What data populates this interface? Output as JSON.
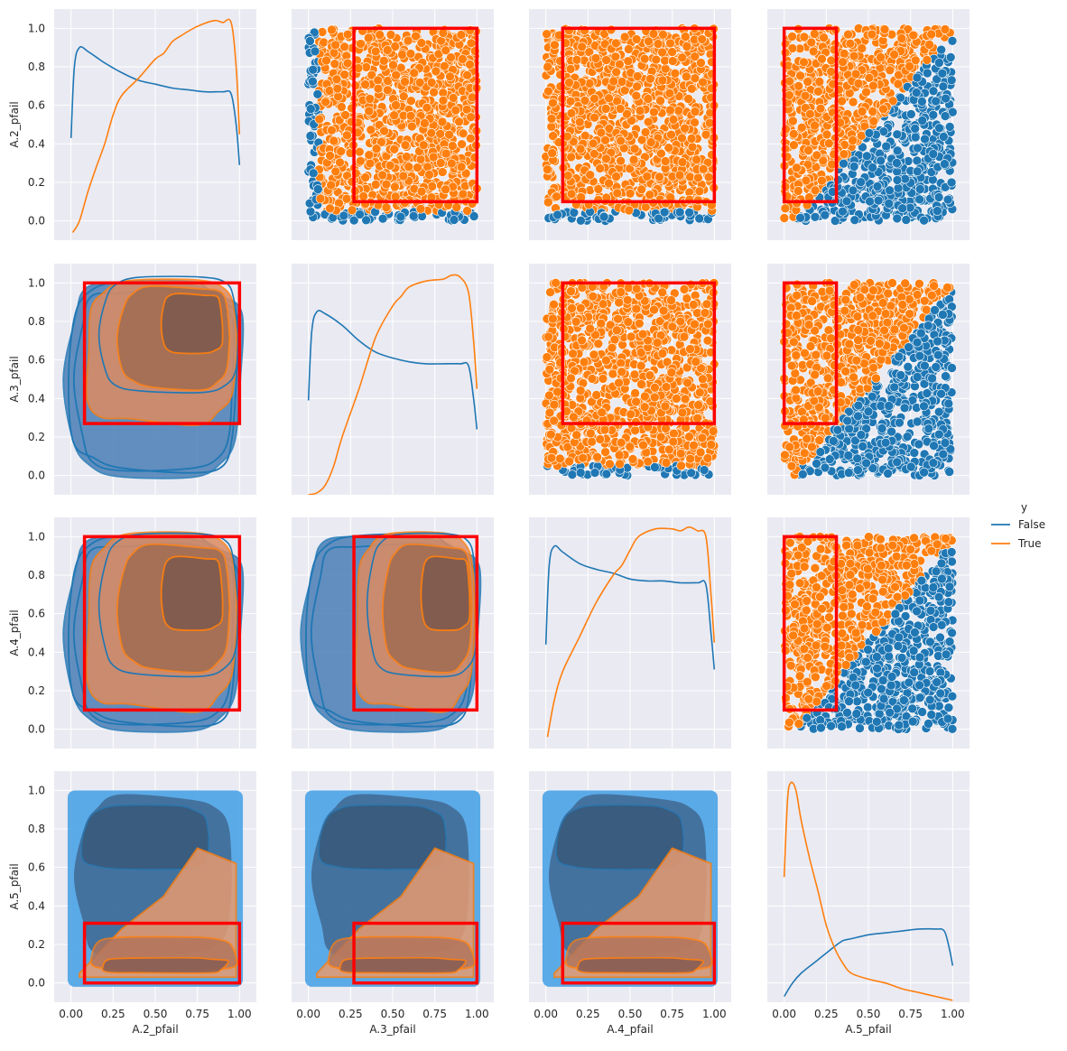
{
  "chart_data": {
    "type": "pairplot",
    "variables": [
      "A.2_pfail",
      "A.3_pfail",
      "A.4_pfail",
      "A.5_pfail"
    ],
    "axis_range": [
      -0.1,
      1.1
    ],
    "x_ticks": [
      "0.00",
      "0.25",
      "0.50",
      "0.75",
      "1.00"
    ],
    "y_ticks": [
      "0.0",
      "0.2",
      "0.4",
      "0.6",
      "0.8",
      "1.0"
    ],
    "hue": "y",
    "legend": {
      "title": "y",
      "placement": "right",
      "entries": [
        {
          "label": "False",
          "color": "#1f77b4"
        },
        {
          "label": "True",
          "color": "#ff7f0e"
        }
      ]
    },
    "colors": {
      "False": "#1f77b4",
      "True": "#ff7f0e",
      "box": "#ff0000",
      "background": "#eaeaf2",
      "grid": "#ffffff",
      "kde_fill_false": "#4aa3e6"
    },
    "diagonal_kde": [
      {
        "var": "A.2_pfail",
        "false": [
          [
            0.0,
            0.43
          ],
          [
            0.02,
            0.8
          ],
          [
            0.05,
            0.9
          ],
          [
            0.1,
            0.88
          ],
          [
            0.15,
            0.85
          ],
          [
            0.2,
            0.82
          ],
          [
            0.3,
            0.77
          ],
          [
            0.4,
            0.73
          ],
          [
            0.5,
            0.71
          ],
          [
            0.6,
            0.69
          ],
          [
            0.7,
            0.68
          ],
          [
            0.8,
            0.67
          ],
          [
            0.9,
            0.67
          ],
          [
            0.95,
            0.66
          ],
          [
            0.98,
            0.5
          ],
          [
            1.0,
            0.29
          ]
        ],
        "true": [
          [
            0.01,
            -0.06
          ],
          [
            0.05,
            0.0
          ],
          [
            0.1,
            0.15
          ],
          [
            0.15,
            0.28
          ],
          [
            0.2,
            0.4
          ],
          [
            0.25,
            0.55
          ],
          [
            0.3,
            0.65
          ],
          [
            0.4,
            0.74
          ],
          [
            0.5,
            0.84
          ],
          [
            0.55,
            0.87
          ],
          [
            0.6,
            0.93
          ],
          [
            0.65,
            0.96
          ],
          [
            0.75,
            1.01
          ],
          [
            0.85,
            1.04
          ],
          [
            0.9,
            1.03
          ],
          [
            0.95,
            1.03
          ],
          [
            0.98,
            0.8
          ],
          [
            1.0,
            0.45
          ]
        ]
      },
      {
        "var": "A.3_pfail",
        "false": [
          [
            0.0,
            0.39
          ],
          [
            0.02,
            0.75
          ],
          [
            0.05,
            0.85
          ],
          [
            0.1,
            0.84
          ],
          [
            0.2,
            0.78
          ],
          [
            0.3,
            0.7
          ],
          [
            0.4,
            0.64
          ],
          [
            0.5,
            0.61
          ],
          [
            0.6,
            0.59
          ],
          [
            0.7,
            0.58
          ],
          [
            0.8,
            0.58
          ],
          [
            0.9,
            0.58
          ],
          [
            0.95,
            0.57
          ],
          [
            0.98,
            0.4
          ],
          [
            1.0,
            0.24
          ]
        ],
        "true": [
          [
            0.0,
            -0.1
          ],
          [
            0.05,
            -0.09
          ],
          [
            0.1,
            -0.05
          ],
          [
            0.15,
            0.05
          ],
          [
            0.2,
            0.2
          ],
          [
            0.3,
            0.45
          ],
          [
            0.4,
            0.72
          ],
          [
            0.5,
            0.88
          ],
          [
            0.55,
            0.93
          ],
          [
            0.6,
            0.98
          ],
          [
            0.7,
            1.01
          ],
          [
            0.8,
            1.02
          ],
          [
            0.85,
            1.04
          ],
          [
            0.9,
            1.03
          ],
          [
            0.95,
            0.95
          ],
          [
            0.98,
            0.7
          ],
          [
            1.0,
            0.45
          ]
        ]
      },
      {
        "var": "A.4_pfail",
        "false": [
          [
            0.0,
            0.44
          ],
          [
            0.02,
            0.85
          ],
          [
            0.05,
            0.95
          ],
          [
            0.1,
            0.92
          ],
          [
            0.2,
            0.86
          ],
          [
            0.3,
            0.83
          ],
          [
            0.4,
            0.81
          ],
          [
            0.5,
            0.78
          ],
          [
            0.6,
            0.77
          ],
          [
            0.7,
            0.77
          ],
          [
            0.8,
            0.76
          ],
          [
            0.9,
            0.76
          ],
          [
            0.95,
            0.75
          ],
          [
            0.98,
            0.5
          ],
          [
            1.0,
            0.31
          ]
        ],
        "true": [
          [
            0.01,
            -0.04
          ],
          [
            0.05,
            0.15
          ],
          [
            0.1,
            0.3
          ],
          [
            0.2,
            0.48
          ],
          [
            0.3,
            0.66
          ],
          [
            0.4,
            0.8
          ],
          [
            0.45,
            0.85
          ],
          [
            0.5,
            0.93
          ],
          [
            0.55,
            1.0
          ],
          [
            0.65,
            1.04
          ],
          [
            0.75,
            1.04
          ],
          [
            0.8,
            1.03
          ],
          [
            0.85,
            1.05
          ],
          [
            0.9,
            1.03
          ],
          [
            0.95,
            1.0
          ],
          [
            0.98,
            0.7
          ],
          [
            1.0,
            0.45
          ]
        ]
      },
      {
        "var": "A.5_pfail",
        "false": [
          [
            0.0,
            -0.07
          ],
          [
            0.05,
            0.0
          ],
          [
            0.1,
            0.05
          ],
          [
            0.2,
            0.12
          ],
          [
            0.3,
            0.19
          ],
          [
            0.35,
            0.22
          ],
          [
            0.4,
            0.23
          ],
          [
            0.5,
            0.25
          ],
          [
            0.6,
            0.26
          ],
          [
            0.7,
            0.27
          ],
          [
            0.8,
            0.28
          ],
          [
            0.9,
            0.28
          ],
          [
            0.95,
            0.27
          ],
          [
            0.98,
            0.18
          ],
          [
            1.0,
            0.09
          ]
        ],
        "true": [
          [
            0.0,
            0.55
          ],
          [
            0.02,
            0.95
          ],
          [
            0.04,
            1.04
          ],
          [
            0.07,
            1.0
          ],
          [
            0.1,
            0.85
          ],
          [
            0.15,
            0.65
          ],
          [
            0.2,
            0.48
          ],
          [
            0.25,
            0.3
          ],
          [
            0.3,
            0.18
          ],
          [
            0.35,
            0.1
          ],
          [
            0.4,
            0.05
          ],
          [
            0.5,
            0.02
          ],
          [
            0.6,
            0.0
          ],
          [
            0.7,
            -0.03
          ],
          [
            0.8,
            -0.05
          ],
          [
            0.9,
            -0.07
          ],
          [
            1.0,
            -0.09
          ]
        ]
      }
    ],
    "scatter_panels": [
      {
        "row": 0,
        "col": 1,
        "x": "A.3_pfail",
        "y": "A.2_pfail",
        "boundary": "x>=0.05 and y>=0.05",
        "box": {
          "x": [
            0.27,
            1.0
          ],
          "y": [
            0.1,
            1.0
          ]
        }
      },
      {
        "row": 0,
        "col": 2,
        "x": "A.4_pfail",
        "y": "A.2_pfail",
        "boundary": "y>=0.05",
        "box": {
          "x": [
            0.1,
            1.0
          ],
          "y": [
            0.1,
            1.0
          ]
        }
      },
      {
        "row": 0,
        "col": 3,
        "x": "A.5_pfail",
        "y": "A.2_pfail",
        "boundary": "y > f(x) diagonal",
        "box": {
          "x": [
            0.0,
            0.31
          ],
          "y": [
            0.1,
            1.0
          ]
        }
      },
      {
        "row": 1,
        "col": 2,
        "x": "A.4_pfail",
        "y": "A.3_pfail",
        "boundary": "y>=0.05",
        "box": {
          "x": [
            0.1,
            1.0
          ],
          "y": [
            0.27,
            1.0
          ]
        }
      },
      {
        "row": 1,
        "col": 3,
        "x": "A.5_pfail",
        "y": "A.3_pfail",
        "boundary": "y > f(x) diagonal",
        "box": {
          "x": [
            0.0,
            0.31
          ],
          "y": [
            0.27,
            1.0
          ]
        }
      },
      {
        "row": 2,
        "col": 3,
        "x": "A.5_pfail",
        "y": "A.4_pfail",
        "boundary": "y > f(x) diagonal",
        "box": {
          "x": [
            0.0,
            0.31
          ],
          "y": [
            0.1,
            1.0
          ]
        }
      }
    ],
    "kde_panels": [
      {
        "row": 1,
        "col": 0,
        "x": "A.2_pfail",
        "y": "A.3_pfail",
        "box": {
          "x": [
            0.08,
            1.0
          ],
          "y": [
            0.27,
            1.0
          ]
        }
      },
      {
        "row": 2,
        "col": 0,
        "x": "A.2_pfail",
        "y": "A.4_pfail",
        "box": {
          "x": [
            0.08,
            1.0
          ],
          "y": [
            0.1,
            1.0
          ]
        }
      },
      {
        "row": 2,
        "col": 1,
        "x": "A.3_pfail",
        "y": "A.4_pfail",
        "box": {
          "x": [
            0.27,
            1.0
          ],
          "y": [
            0.1,
            1.0
          ]
        }
      },
      {
        "row": 3,
        "col": 0,
        "x": "A.2_pfail",
        "y": "A.5_pfail",
        "box": {
          "x": [
            0.08,
            1.0
          ],
          "y": [
            0.0,
            0.31
          ]
        }
      },
      {
        "row": 3,
        "col": 1,
        "x": "A.3_pfail",
        "y": "A.5_pfail",
        "box": {
          "x": [
            0.27,
            1.0
          ],
          "y": [
            0.0,
            0.31
          ]
        }
      },
      {
        "row": 3,
        "col": 2,
        "x": "A.4_pfail",
        "y": "A.5_pfail",
        "box": {
          "x": [
            0.1,
            1.0
          ],
          "y": [
            0.0,
            0.31
          ]
        }
      }
    ]
  }
}
